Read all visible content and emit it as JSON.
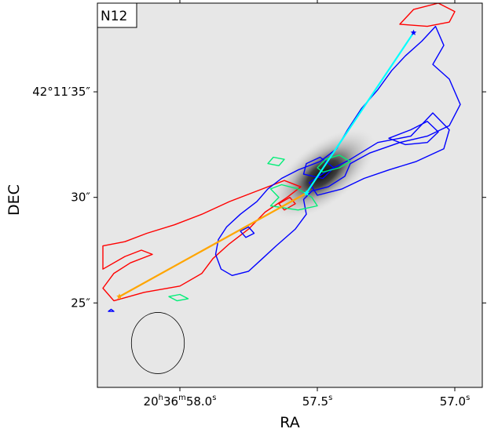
{
  "chart_data": {
    "type": "contour",
    "panel_label": "N12",
    "xlabel": "RA",
    "ylabel": "DEC",
    "x_ticks": [
      {
        "main": "20",
        "sup1": "h",
        "mid": "36",
        "sup2": "m",
        "rest": "58.0",
        "sup3": "s",
        "value": 58.0
      },
      {
        "main": "57.5",
        "sup1": "s",
        "value": 57.5
      },
      {
        "main": "57.0",
        "sup1": "s",
        "value": 57.0
      }
    ],
    "y_ticks": [
      {
        "label": "42°11′35″",
        "value": 35
      },
      {
        "label": "30″",
        "value": 30
      },
      {
        "label": "25″",
        "value": 25
      }
    ],
    "xlim": [
      58.3,
      56.9
    ],
    "ylim": [
      21.0,
      39.2
    ],
    "background_colormap": "gray_r",
    "colors": {
      "red": "#ff0000",
      "blue": "#0000ff",
      "green": "#00ee77",
      "cyan": "#00ffff",
      "orange": "#ffa500",
      "beam": "#000000"
    },
    "background_peak": {
      "ra": 57.48,
      "dec": 31.1
    },
    "contours": {
      "red": [
        [
          [
            58.28,
            26.6
          ],
          [
            58.2,
            27.2
          ],
          [
            58.14,
            27.5
          ],
          [
            58.1,
            27.3
          ],
          [
            58.18,
            26.9
          ],
          [
            58.24,
            26.4
          ],
          [
            58.28,
            25.7
          ],
          [
            58.24,
            25.1
          ],
          [
            58.13,
            25.5
          ],
          [
            58.0,
            25.8
          ],
          [
            57.92,
            26.4
          ],
          [
            57.88,
            27.1
          ],
          [
            57.82,
            27.8
          ],
          [
            57.75,
            28.5
          ],
          [
            57.69,
            29.3
          ],
          [
            57.61,
            30.0
          ],
          [
            57.56,
            30.5
          ],
          [
            57.62,
            30.8
          ],
          [
            57.72,
            30.3
          ],
          [
            57.82,
            29.8
          ],
          [
            57.92,
            29.2
          ],
          [
            58.02,
            28.7
          ],
          [
            58.12,
            28.3
          ],
          [
            58.2,
            27.9
          ],
          [
            58.28,
            27.7
          ]
        ],
        [
          [
            57.62,
            29.4
          ],
          [
            57.64,
            29.7
          ],
          [
            57.6,
            30.0
          ],
          [
            57.58,
            29.7
          ]
        ],
        [
          [
            57.2,
            38.2
          ],
          [
            57.15,
            38.9
          ],
          [
            57.06,
            39.2
          ],
          [
            57.0,
            38.8
          ],
          [
            57.02,
            38.3
          ],
          [
            57.1,
            38.1
          ]
        ]
      ],
      "blue": [
        [
          [
            57.07,
            38.1
          ],
          [
            57.04,
            37.2
          ],
          [
            57.08,
            36.3
          ],
          [
            57.02,
            35.6
          ],
          [
            56.98,
            34.4
          ],
          [
            57.02,
            33.4
          ],
          [
            57.1,
            32.9
          ],
          [
            57.2,
            32.6
          ],
          [
            57.31,
            32.1
          ],
          [
            57.38,
            31.6
          ],
          [
            57.4,
            31.0
          ],
          [
            57.46,
            30.5
          ],
          [
            57.52,
            30.3
          ],
          [
            57.55,
            29.9
          ],
          [
            57.54,
            29.2
          ],
          [
            57.58,
            28.5
          ],
          [
            57.65,
            27.7
          ],
          [
            57.7,
            27.1
          ],
          [
            57.75,
            26.5
          ],
          [
            57.81,
            26.3
          ],
          [
            57.85,
            26.6
          ],
          [
            57.87,
            27.3
          ],
          [
            57.86,
            28.0
          ],
          [
            57.83,
            28.6
          ],
          [
            57.78,
            29.2
          ],
          [
            57.72,
            29.8
          ],
          [
            57.68,
            30.4
          ],
          [
            57.63,
            30.9
          ],
          [
            57.57,
            31.3
          ],
          [
            57.49,
            31.7
          ],
          [
            57.43,
            32.3
          ],
          [
            57.39,
            33.2
          ],
          [
            57.34,
            34.2
          ],
          [
            57.28,
            35.1
          ],
          [
            57.23,
            36.0
          ],
          [
            57.18,
            36.7
          ],
          [
            57.12,
            37.4
          ]
        ],
        [
          [
            57.08,
            34.0
          ],
          [
            57.16,
            32.9
          ],
          [
            57.28,
            32.6
          ],
          [
            57.38,
            31.8
          ],
          [
            57.47,
            31.2
          ],
          [
            57.53,
            30.7
          ],
          [
            57.5,
            30.1
          ],
          [
            57.41,
            30.4
          ],
          [
            57.33,
            30.9
          ],
          [
            57.24,
            31.3
          ],
          [
            57.14,
            31.7
          ],
          [
            57.04,
            32.3
          ],
          [
            57.02,
            33.2
          ]
        ],
        [
          [
            57.1,
            33.6
          ],
          [
            57.16,
            33.2
          ],
          [
            57.24,
            32.8
          ],
          [
            57.18,
            32.5
          ],
          [
            57.1,
            32.6
          ],
          [
            57.06,
            33.1
          ]
        ],
        [
          [
            57.49,
            31.9
          ],
          [
            57.44,
            31.4
          ],
          [
            57.48,
            30.9
          ],
          [
            57.55,
            31.1
          ],
          [
            57.54,
            31.6
          ]
        ],
        [
          [
            57.78,
            28.4
          ],
          [
            57.75,
            28.6
          ],
          [
            57.73,
            28.3
          ],
          [
            57.76,
            28.1
          ]
        ],
        [
          [
            58.26,
            24.6
          ],
          [
            58.25,
            24.7
          ],
          [
            58.24,
            24.6
          ]
        ]
      ],
      "green": [
        [
          [
            57.67,
            29.6
          ],
          [
            57.64,
            30.0
          ],
          [
            57.67,
            30.4
          ],
          [
            57.63,
            30.6
          ],
          [
            57.57,
            30.4
          ],
          [
            57.52,
            30.0
          ],
          [
            57.5,
            29.6
          ],
          [
            57.57,
            29.4
          ]
        ],
        [
          [
            57.48,
            31.2
          ],
          [
            57.42,
            31.4
          ],
          [
            57.38,
            31.7
          ],
          [
            57.42,
            32.0
          ],
          [
            57.47,
            31.8
          ],
          [
            57.5,
            31.4
          ]
        ],
        [
          [
            57.64,
            31.5
          ],
          [
            57.62,
            31.8
          ],
          [
            57.66,
            31.9
          ],
          [
            57.68,
            31.6
          ]
        ],
        [
          [
            58.04,
            25.3
          ],
          [
            58.0,
            25.4
          ],
          [
            57.97,
            25.2
          ],
          [
            58.01,
            25.1
          ]
        ]
      ]
    },
    "outflow_axes": [
      {
        "color_key": "orange",
        "points": [
          [
            58.22,
            25.3
          ],
          [
            57.54,
            30.2
          ]
        ]
      },
      {
        "color_key": "cyan",
        "points": [
          [
            57.54,
            30.2
          ],
          [
            57.15,
            37.8
          ]
        ]
      }
    ],
    "markers": [
      {
        "color_key": "orange",
        "ra": 58.22,
        "dec": 25.3
      },
      {
        "color_key": "cyan",
        "ra": 57.54,
        "dec": 30.2
      },
      {
        "color_key": "blue",
        "ra": 57.15,
        "dec": 37.8
      }
    ],
    "beam": {
      "ra": 58.08,
      "dec": 23.1,
      "major_arcsec": 1.45,
      "minor_arcsec": 1.25
    }
  }
}
